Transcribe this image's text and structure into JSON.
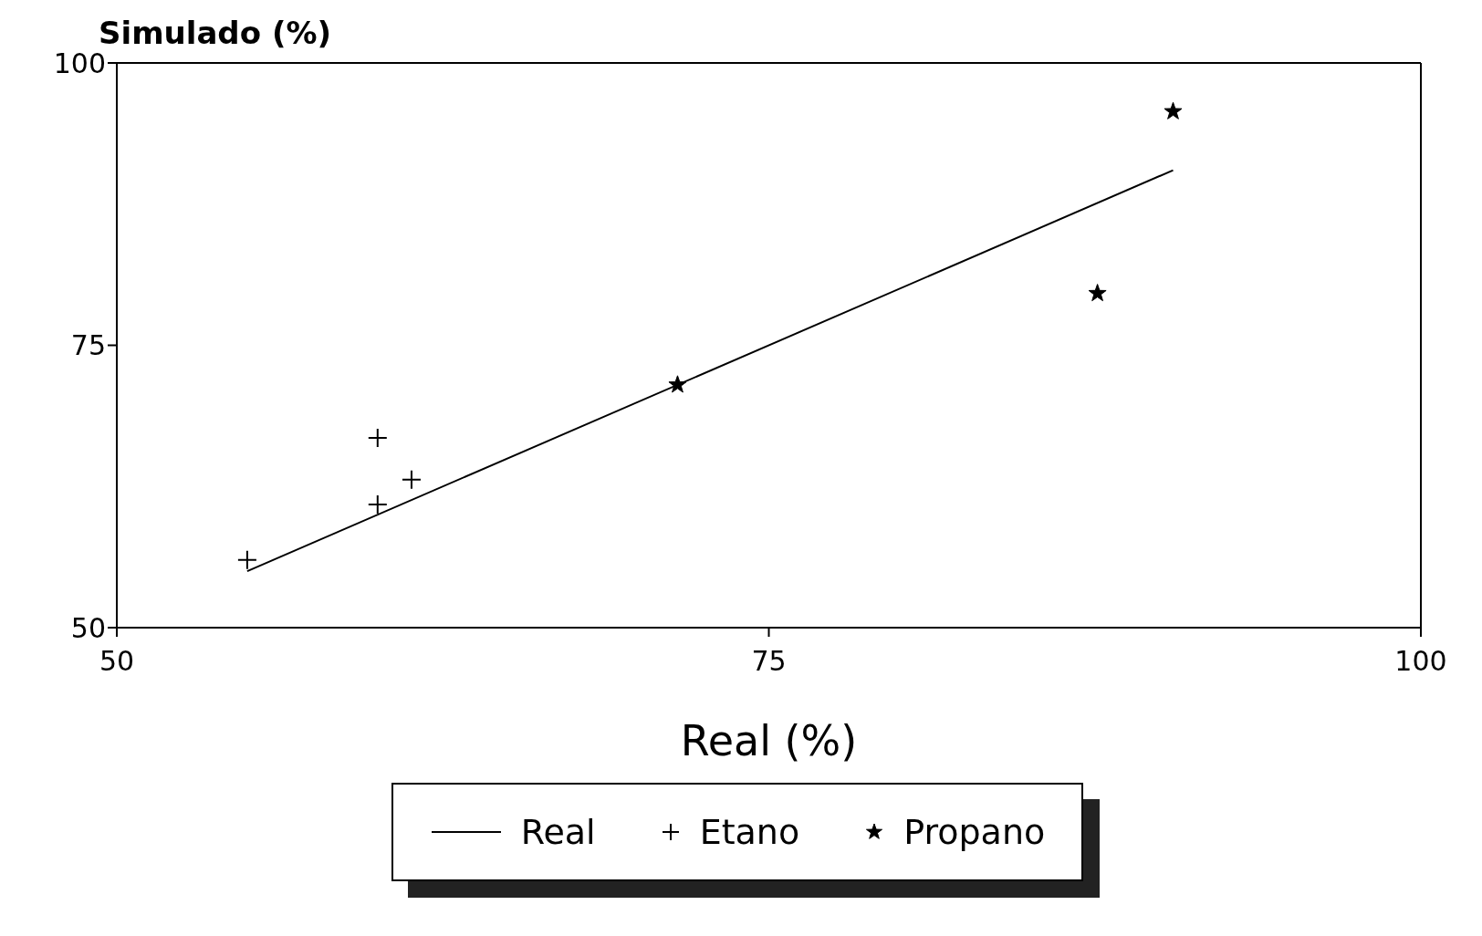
{
  "chart_data": {
    "type": "scatter",
    "xlabel": "Real (%)",
    "ylabel": "Simulado (%)",
    "xlim": [
      50,
      100
    ],
    "ylim": [
      50,
      100
    ],
    "xticks": [
      50,
      75,
      100
    ],
    "yticks": [
      50,
      75,
      100
    ],
    "legend": "bottom",
    "series": [
      {
        "name": "Real",
        "type": "line",
        "color": "#000000",
        "x": [
          55,
          90.5
        ],
        "values": [
          55,
          90.5
        ],
        "marker": "none"
      },
      {
        "name": "Etano",
        "color": "#000000",
        "x": [
          55,
          60,
          60,
          61.3
        ],
        "values": [
          56,
          66.8,
          60.9,
          63.1
        ],
        "marker": "cross"
      },
      {
        "name": "Propano",
        "color": "#000000",
        "x": [
          71.5,
          87.6,
          90.5
        ],
        "values": [
          71.5,
          79.6,
          95.7
        ],
        "marker": "star"
      }
    ]
  }
}
